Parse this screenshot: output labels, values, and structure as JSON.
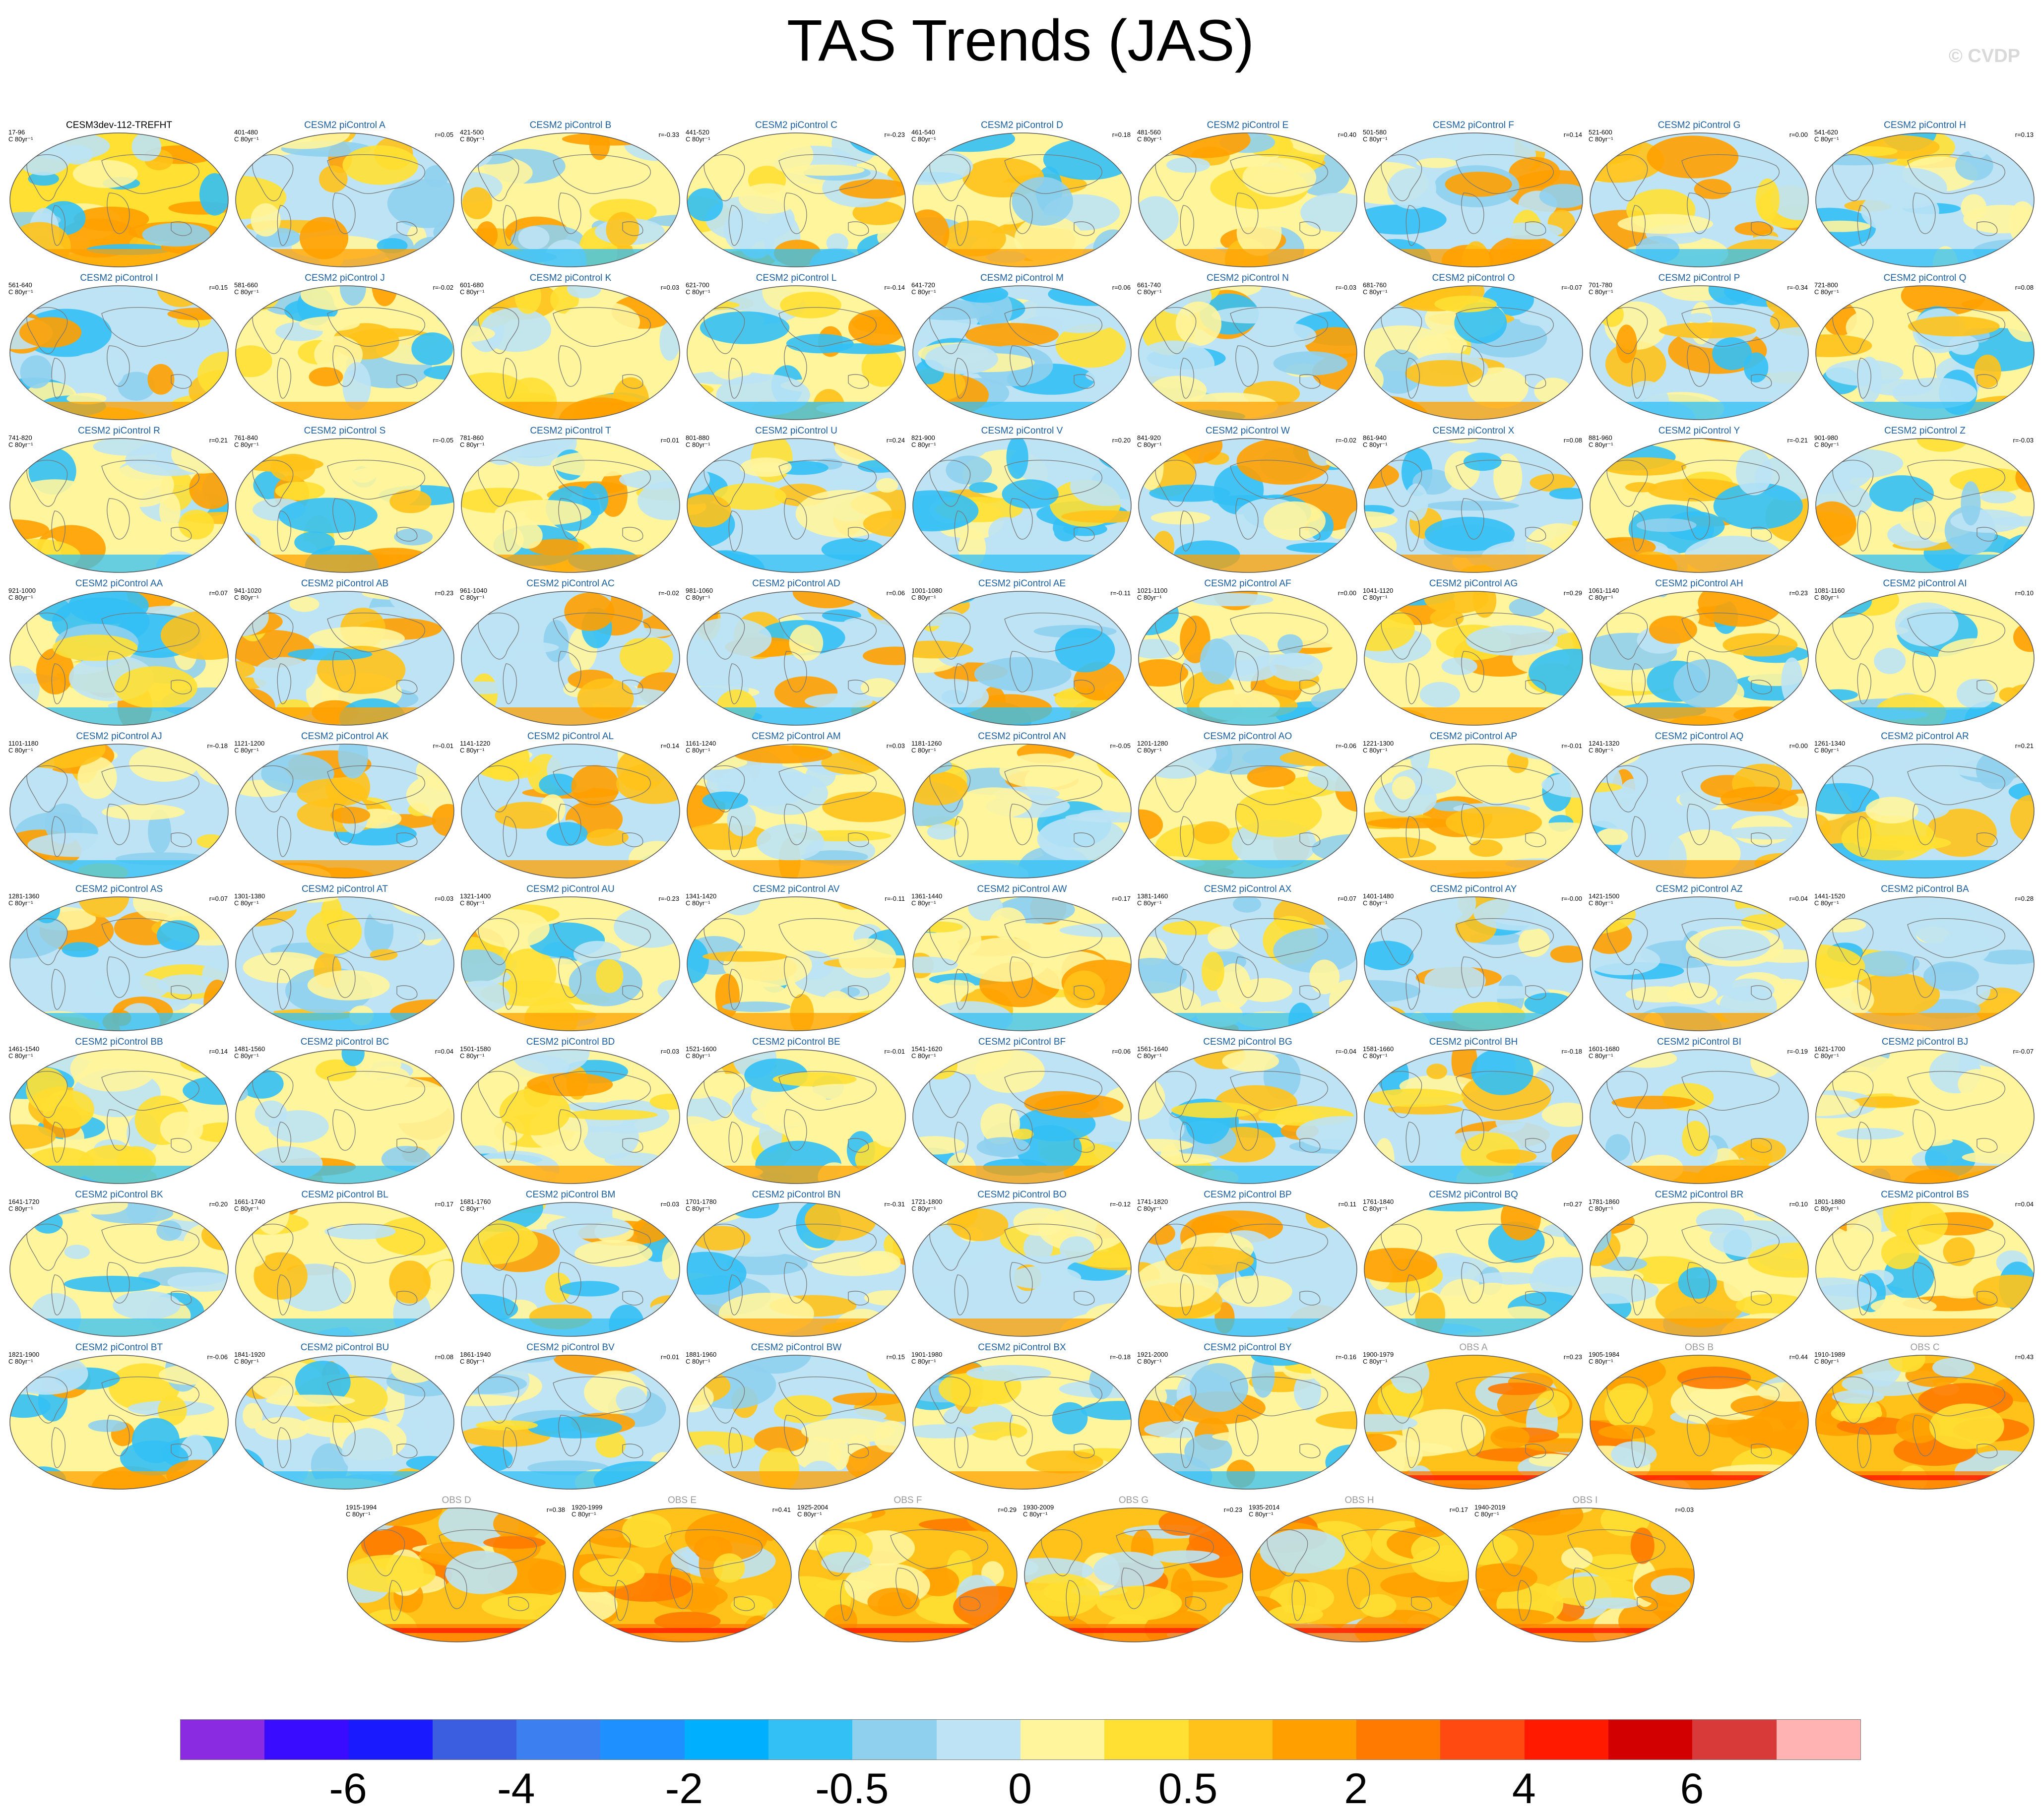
{
  "figure": {
    "title": "TAS Trends (JAS)",
    "copyright": "© CVDP",
    "units": "C 80yr⁻¹"
  },
  "panels": [
    {
      "title": "CESM3dev-112-TREFHT",
      "range": "17-96",
      "corr": "",
      "kind": "base"
    },
    {
      "title": "CESM2 piControl A",
      "range": "401-480",
      "corr": "r=0.05",
      "kind": "ctrl"
    },
    {
      "title": "CESM2 piControl B",
      "range": "421-500",
      "corr": "r=-0.33",
      "kind": "ctrl"
    },
    {
      "title": "CESM2 piControl C",
      "range": "441-520",
      "corr": "r=-0.23",
      "kind": "ctrl"
    },
    {
      "title": "CESM2 piControl D",
      "range": "461-540",
      "corr": "r=0.18",
      "kind": "ctrl"
    },
    {
      "title": "CESM2 piControl E",
      "range": "481-560",
      "corr": "r=0.40",
      "kind": "ctrl"
    },
    {
      "title": "CESM2 piControl F",
      "range": "501-580",
      "corr": "r=0.14",
      "kind": "ctrl"
    },
    {
      "title": "CESM2 piControl G",
      "range": "521-600",
      "corr": "r=0.00",
      "kind": "ctrl"
    },
    {
      "title": "CESM2 piControl H",
      "range": "541-620",
      "corr": "r=0.13",
      "kind": "ctrl"
    },
    {
      "title": "CESM2 piControl I",
      "range": "561-640",
      "corr": "r=0.15",
      "kind": "ctrl"
    },
    {
      "title": "CESM2 piControl J",
      "range": "581-660",
      "corr": "r=-0.02",
      "kind": "ctrl"
    },
    {
      "title": "CESM2 piControl K",
      "range": "601-680",
      "corr": "r=0.03",
      "kind": "ctrl"
    },
    {
      "title": "CESM2 piControl L",
      "range": "621-700",
      "corr": "r=-0.14",
      "kind": "ctrl"
    },
    {
      "title": "CESM2 piControl M",
      "range": "641-720",
      "corr": "r=0.06",
      "kind": "ctrl"
    },
    {
      "title": "CESM2 piControl N",
      "range": "661-740",
      "corr": "r=-0.03",
      "kind": "ctrl"
    },
    {
      "title": "CESM2 piControl O",
      "range": "681-760",
      "corr": "r=-0.07",
      "kind": "ctrl"
    },
    {
      "title": "CESM2 piControl P",
      "range": "701-780",
      "corr": "r=-0.34",
      "kind": "ctrl"
    },
    {
      "title": "CESM2 piControl Q",
      "range": "721-800",
      "corr": "r=0.08",
      "kind": "ctrl"
    },
    {
      "title": "CESM2 piControl R",
      "range": "741-820",
      "corr": "r=0.21",
      "kind": "ctrl"
    },
    {
      "title": "CESM2 piControl S",
      "range": "761-840",
      "corr": "r=-0.05",
      "kind": "ctrl"
    },
    {
      "title": "CESM2 piControl T",
      "range": "781-860",
      "corr": "r=0.01",
      "kind": "ctrl"
    },
    {
      "title": "CESM2 piControl U",
      "range": "801-880",
      "corr": "r=0.24",
      "kind": "ctrl"
    },
    {
      "title": "CESM2 piControl V",
      "range": "821-900",
      "corr": "r=0.20",
      "kind": "ctrl"
    },
    {
      "title": "CESM2 piControl W",
      "range": "841-920",
      "corr": "r=-0.02",
      "kind": "ctrl"
    },
    {
      "title": "CESM2 piControl X",
      "range": "861-940",
      "corr": "r=0.08",
      "kind": "ctrl"
    },
    {
      "title": "CESM2 piControl Y",
      "range": "881-960",
      "corr": "r=-0.21",
      "kind": "ctrl"
    },
    {
      "title": "CESM2 piControl Z",
      "range": "901-980",
      "corr": "r=-0.03",
      "kind": "ctrl"
    },
    {
      "title": "CESM2 piControl AA",
      "range": "921-1000",
      "corr": "r=0.07",
      "kind": "ctrl"
    },
    {
      "title": "CESM2 piControl AB",
      "range": "941-1020",
      "corr": "r=0.23",
      "kind": "ctrl"
    },
    {
      "title": "CESM2 piControl AC",
      "range": "961-1040",
      "corr": "r=-0.02",
      "kind": "ctrl"
    },
    {
      "title": "CESM2 piControl AD",
      "range": "981-1060",
      "corr": "r=0.06",
      "kind": "ctrl"
    },
    {
      "title": "CESM2 piControl AE",
      "range": "1001-1080",
      "corr": "r=-0.11",
      "kind": "ctrl"
    },
    {
      "title": "CESM2 piControl AF",
      "range": "1021-1100",
      "corr": "r=0.00",
      "kind": "ctrl"
    },
    {
      "title": "CESM2 piControl AG",
      "range": "1041-1120",
      "corr": "r=0.29",
      "kind": "ctrl"
    },
    {
      "title": "CESM2 piControl AH",
      "range": "1061-1140",
      "corr": "r=0.23",
      "kind": "ctrl"
    },
    {
      "title": "CESM2 piControl AI",
      "range": "1081-1160",
      "corr": "r=0.10",
      "kind": "ctrl"
    },
    {
      "title": "CESM2 piControl AJ",
      "range": "1101-1180",
      "corr": "r=-0.18",
      "kind": "ctrl"
    },
    {
      "title": "CESM2 piControl AK",
      "range": "1121-1200",
      "corr": "r=-0.01",
      "kind": "ctrl"
    },
    {
      "title": "CESM2 piControl AL",
      "range": "1141-1220",
      "corr": "r=0.14",
      "kind": "ctrl"
    },
    {
      "title": "CESM2 piControl AM",
      "range": "1161-1240",
      "corr": "r=0.03",
      "kind": "ctrl"
    },
    {
      "title": "CESM2 piControl AN",
      "range": "1181-1260",
      "corr": "r=-0.05",
      "kind": "ctrl"
    },
    {
      "title": "CESM2 piControl AO",
      "range": "1201-1280",
      "corr": "r=-0.06",
      "kind": "ctrl"
    },
    {
      "title": "CESM2 piControl AP",
      "range": "1221-1300",
      "corr": "r=-0.01",
      "kind": "ctrl"
    },
    {
      "title": "CESM2 piControl AQ",
      "range": "1241-1320",
      "corr": "r=0.00",
      "kind": "ctrl"
    },
    {
      "title": "CESM2 piControl AR",
      "range": "1261-1340",
      "corr": "r=0.21",
      "kind": "ctrl"
    },
    {
      "title": "CESM2 piControl AS",
      "range": "1281-1360",
      "corr": "r=0.07",
      "kind": "ctrl"
    },
    {
      "title": "CESM2 piControl AT",
      "range": "1301-1380",
      "corr": "r=0.03",
      "kind": "ctrl"
    },
    {
      "title": "CESM2 piControl AU",
      "range": "1321-1400",
      "corr": "r=-0.23",
      "kind": "ctrl"
    },
    {
      "title": "CESM2 piControl AV",
      "range": "1341-1420",
      "corr": "r=-0.11",
      "kind": "ctrl"
    },
    {
      "title": "CESM2 piControl AW",
      "range": "1361-1440",
      "corr": "r=0.17",
      "kind": "ctrl"
    },
    {
      "title": "CESM2 piControl AX",
      "range": "1381-1460",
      "corr": "r=0.07",
      "kind": "ctrl"
    },
    {
      "title": "CESM2 piControl AY",
      "range": "1401-1480",
      "corr": "r=-0.00",
      "kind": "ctrl"
    },
    {
      "title": "CESM2 piControl AZ",
      "range": "1421-1500",
      "corr": "r=0.04",
      "kind": "ctrl"
    },
    {
      "title": "CESM2 piControl BA",
      "range": "1441-1520",
      "corr": "r=0.28",
      "kind": "ctrl"
    },
    {
      "title": "CESM2 piControl BB",
      "range": "1461-1540",
      "corr": "r=0.14",
      "kind": "ctrl"
    },
    {
      "title": "CESM2 piControl BC",
      "range": "1481-1560",
      "corr": "r=0.04",
      "kind": "ctrl"
    },
    {
      "title": "CESM2 piControl BD",
      "range": "1501-1580",
      "corr": "r=0.03",
      "kind": "ctrl"
    },
    {
      "title": "CESM2 piControl BE",
      "range": "1521-1600",
      "corr": "r=-0.01",
      "kind": "ctrl"
    },
    {
      "title": "CESM2 piControl BF",
      "range": "1541-1620",
      "corr": "r=0.06",
      "kind": "ctrl"
    },
    {
      "title": "CESM2 piControl BG",
      "range": "1561-1640",
      "corr": "r=-0.04",
      "kind": "ctrl"
    },
    {
      "title": "CESM2 piControl BH",
      "range": "1581-1660",
      "corr": "r=-0.18",
      "kind": "ctrl"
    },
    {
      "title": "CESM2 piControl BI",
      "range": "1601-1680",
      "corr": "r=-0.19",
      "kind": "ctrl"
    },
    {
      "title": "CESM2 piControl BJ",
      "range": "1621-1700",
      "corr": "r=-0.07",
      "kind": "ctrl"
    },
    {
      "title": "CESM2 piControl BK",
      "range": "1641-1720",
      "corr": "r=0.20",
      "kind": "ctrl"
    },
    {
      "title": "CESM2 piControl BL",
      "range": "1661-1740",
      "corr": "r=0.17",
      "kind": "ctrl"
    },
    {
      "title": "CESM2 piControl BM",
      "range": "1681-1760",
      "corr": "r=0.03",
      "kind": "ctrl"
    },
    {
      "title": "CESM2 piControl BN",
      "range": "1701-1780",
      "corr": "r=-0.31",
      "kind": "ctrl"
    },
    {
      "title": "CESM2 piControl BO",
      "range": "1721-1800",
      "corr": "r=-0.12",
      "kind": "ctrl"
    },
    {
      "title": "CESM2 piControl BP",
      "range": "1741-1820",
      "corr": "r=0.11",
      "kind": "ctrl"
    },
    {
      "title": "CESM2 piControl BQ",
      "range": "1761-1840",
      "corr": "r=0.27",
      "kind": "ctrl"
    },
    {
      "title": "CESM2 piControl BR",
      "range": "1781-1860",
      "corr": "r=0.10",
      "kind": "ctrl"
    },
    {
      "title": "CESM2 piControl BS",
      "range": "1801-1880",
      "corr": "r=0.04",
      "kind": "ctrl"
    },
    {
      "title": "CESM2 piControl BT",
      "range": "1821-1900",
      "corr": "r=-0.06",
      "kind": "ctrl"
    },
    {
      "title": "CESM2 piControl BU",
      "range": "1841-1920",
      "corr": "r=0.08",
      "kind": "ctrl"
    },
    {
      "title": "CESM2 piControl BV",
      "range": "1861-1940",
      "corr": "r=0.01",
      "kind": "ctrl"
    },
    {
      "title": "CESM2 piControl BW",
      "range": "1881-1960",
      "corr": "r=0.15",
      "kind": "ctrl"
    },
    {
      "title": "CESM2 piControl BX",
      "range": "1901-1980",
      "corr": "r=-0.18",
      "kind": "ctrl"
    },
    {
      "title": "CESM2 piControl BY",
      "range": "1921-2000",
      "corr": "r=-0.16",
      "kind": "ctrl"
    },
    {
      "title": "OBS A",
      "range": "1900-1979",
      "corr": "r=0.23",
      "kind": "obs"
    },
    {
      "title": "OBS B",
      "range": "1905-1984",
      "corr": "r=0.44",
      "kind": "obs"
    },
    {
      "title": "OBS C",
      "range": "1910-1989",
      "corr": "r=0.43",
      "kind": "obs"
    },
    {
      "title": "OBS D",
      "range": "1915-1994",
      "corr": "r=0.38",
      "kind": "obs"
    },
    {
      "title": "OBS E",
      "range": "1920-1999",
      "corr": "r=0.41",
      "kind": "obs"
    },
    {
      "title": "OBS F",
      "range": "1925-2004",
      "corr": "r=0.29",
      "kind": "obs"
    },
    {
      "title": "OBS G",
      "range": "1930-2009",
      "corr": "r=0.23",
      "kind": "obs"
    },
    {
      "title": "OBS H",
      "range": "1935-2014",
      "corr": "r=0.17",
      "kind": "obs"
    },
    {
      "title": "OBS I",
      "range": "1940-2019",
      "corr": "r=0.03",
      "kind": "obs"
    }
  ],
  "colorbar": {
    "colors": [
      "#8a2be2",
      "#3a0cff",
      "#1a1aff",
      "#3b5ee0",
      "#3b7ff0",
      "#1e90ff",
      "#00b0ff",
      "#33c0f5",
      "#8fd0ee",
      "#bde3f5",
      "#fff59d",
      "#ffe033",
      "#ffc21a",
      "#ffa000",
      "#ff7a00",
      "#ff4a12",
      "#ff1a00",
      "#d20000",
      "#d83a3a",
      "#ffb3b3"
    ],
    "labels": [
      "-6",
      "-4",
      "-2",
      "-0.5",
      "0",
      "0.5",
      "2",
      "4",
      "6"
    ],
    "label_edges": [
      2,
      4,
      6,
      8,
      10,
      12,
      14,
      16,
      18
    ]
  }
}
